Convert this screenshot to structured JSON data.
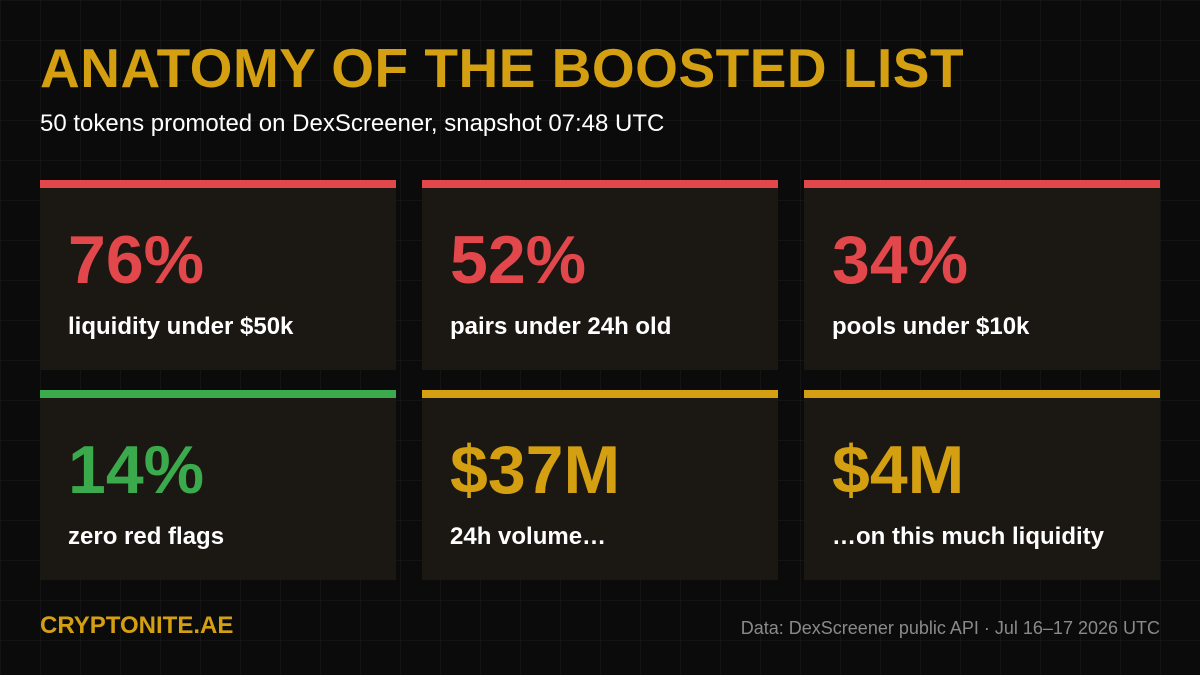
{
  "header": {
    "title": "ANATOMY OF THE BOOSTED LIST",
    "subtitle": "50 tokens promoted on DexScreener, snapshot 07:48 UTC"
  },
  "cards": [
    {
      "value": "76%",
      "label": "liquidity under $50k",
      "color": "#e2474b"
    },
    {
      "value": "52%",
      "label": "pairs under 24h old",
      "color": "#e2474b"
    },
    {
      "value": "34%",
      "label": "pools under $10k",
      "color": "#e2474b"
    },
    {
      "value": "14%",
      "label": "zero red flags",
      "color": "#3aaa4c"
    },
    {
      "value": "$37M",
      "label": "24h volume…",
      "color": "#d4a012"
    },
    {
      "value": "$4M",
      "label": "…on this much liquidity",
      "color": "#d4a012"
    }
  ],
  "footer": {
    "brand": "CRYPTONITE.AE",
    "source": "Data: DexScreener public API · Jul 16–17 2026 UTC"
  },
  "colors": {
    "background": "#0b0b0b",
    "accent_gold": "#d4a012",
    "alert_red": "#e2474b",
    "ok_green": "#3aaa4c",
    "card_bg": "#1b1814"
  }
}
